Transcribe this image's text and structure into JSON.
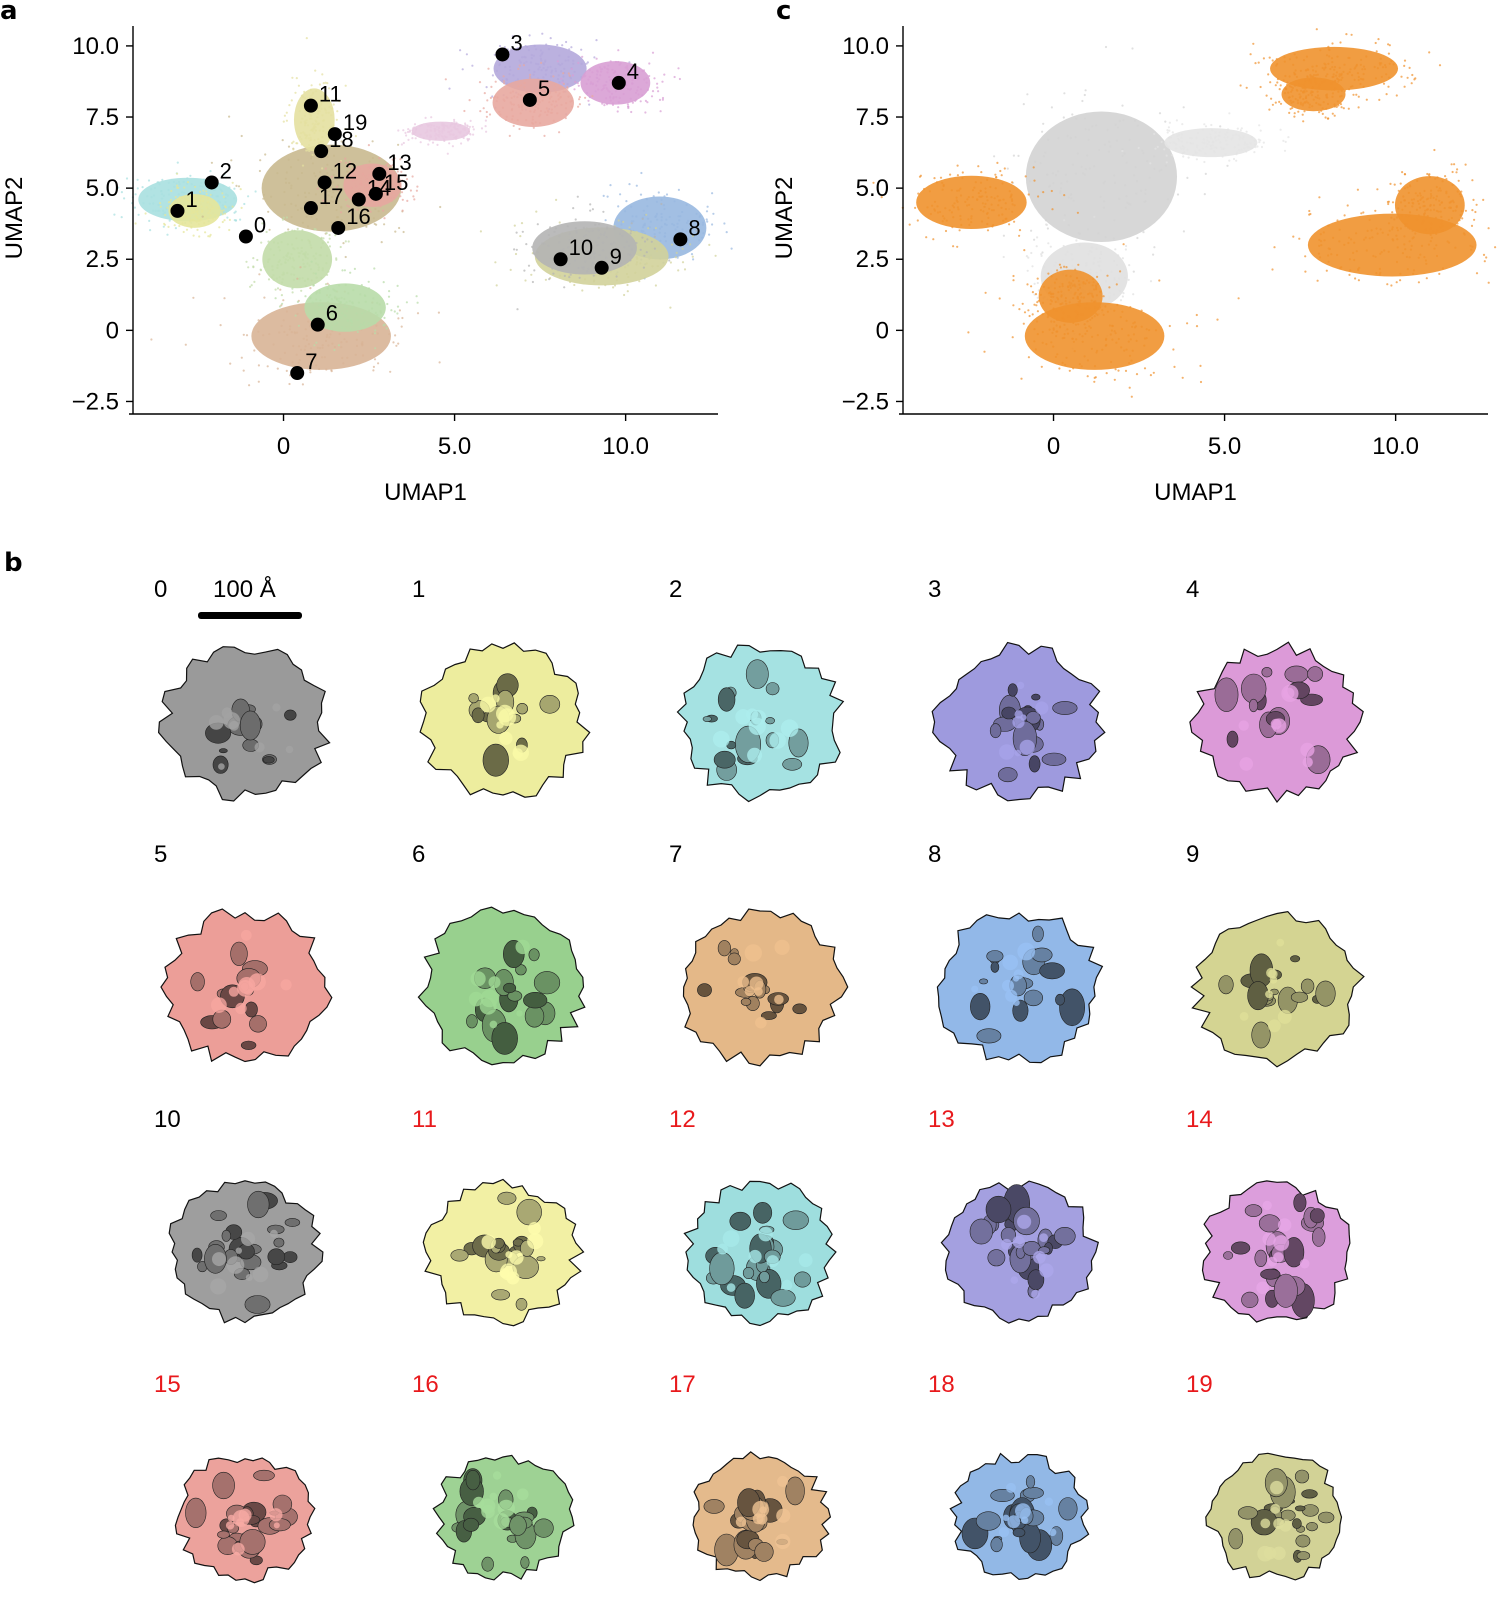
{
  "panels": {
    "a": "a",
    "b": "b",
    "c": "c"
  },
  "chart_data": [
    {
      "type": "scatter",
      "panel": "a",
      "xlabel": "UMAP1",
      "ylabel": "UMAP2",
      "xlim": [
        -4.4,
        12.7
      ],
      "ylim": [
        -2.8,
        10.7
      ],
      "xticks": [
        0,
        5.0,
        10.0
      ],
      "xtick_labels": [
        "0",
        "5.0",
        "10.0"
      ],
      "yticks": [
        -2.5,
        0,
        2.5,
        5.0,
        7.5,
        10.0
      ],
      "ytick_labels": [
        "−2.5",
        "0",
        "2.5",
        "5.0",
        "7.5",
        "10.0"
      ],
      "grid": false,
      "density_regions": [
        {
          "cx": -2.8,
          "cy": 4.6,
          "rx": 1.7,
          "ry": 0.9,
          "color": "#a8e0e0"
        },
        {
          "cx": -2.6,
          "cy": 4.2,
          "rx": 0.9,
          "ry": 0.7,
          "color": "#e6e69a"
        },
        {
          "cx": 1.4,
          "cy": 5.0,
          "rx": 2.4,
          "ry": 1.8,
          "color": "#c9b98f"
        },
        {
          "cx": 0.9,
          "cy": 7.4,
          "rx": 0.7,
          "ry": 1.3,
          "color": "#e4e0a0"
        },
        {
          "cx": 2.6,
          "cy": 5.1,
          "rx": 1.0,
          "ry": 0.9,
          "color": "#e7a7a0"
        },
        {
          "cx": 0.4,
          "cy": 2.5,
          "rx": 1.2,
          "ry": 1.2,
          "color": "#c2dca8"
        },
        {
          "cx": 1.1,
          "cy": -0.2,
          "rx": 2.4,
          "ry": 1.4,
          "color": "#d8b496"
        },
        {
          "cx": 1.8,
          "cy": 0.8,
          "rx": 1.4,
          "ry": 1.0,
          "color": "#b8dca8"
        },
        {
          "cx": 7.5,
          "cy": 9.2,
          "rx": 1.6,
          "ry": 1.0,
          "color": "#b4a8dc"
        },
        {
          "cx": 9.7,
          "cy": 8.7,
          "rx": 1.2,
          "ry": 0.9,
          "color": "#d89ed4"
        },
        {
          "cx": 7.3,
          "cy": 8.0,
          "rx": 1.4,
          "ry": 1.0,
          "color": "#e8a8a0"
        },
        {
          "cx": 11.0,
          "cy": 3.6,
          "rx": 1.6,
          "ry": 1.3,
          "color": "#98b8e0"
        },
        {
          "cx": 9.3,
          "cy": 2.6,
          "rx": 2.3,
          "ry": 1.2,
          "color": "#d2d29a"
        },
        {
          "cx": 8.8,
          "cy": 2.9,
          "rx": 1.8,
          "ry": 1.1,
          "color": "#b4b4b4"
        },
        {
          "cx": 4.6,
          "cy": 7.0,
          "rx": 1.0,
          "ry": 0.4,
          "color": "#e8c8e0"
        }
      ],
      "cluster_centers": [
        {
          "label": "0",
          "x": -1.1,
          "y": 3.3
        },
        {
          "label": "1",
          "x": -3.1,
          "y": 4.2
        },
        {
          "label": "2",
          "x": -2.1,
          "y": 5.2
        },
        {
          "label": "3",
          "x": 6.4,
          "y": 9.7
        },
        {
          "label": "4",
          "x": 9.8,
          "y": 8.7
        },
        {
          "label": "5",
          "x": 7.2,
          "y": 8.1
        },
        {
          "label": "6",
          "x": 1.0,
          "y": 0.2
        },
        {
          "label": "7",
          "x": 0.4,
          "y": -1.5
        },
        {
          "label": "8",
          "x": 11.6,
          "y": 3.2
        },
        {
          "label": "9",
          "x": 9.3,
          "y": 2.2
        },
        {
          "label": "10",
          "x": 8.1,
          "y": 2.5
        },
        {
          "label": "11",
          "x": 0.8,
          "y": 7.9
        },
        {
          "label": "12",
          "x": 1.2,
          "y": 5.2
        },
        {
          "label": "13",
          "x": 2.8,
          "y": 5.5
        },
        {
          "label": "14",
          "x": 2.2,
          "y": 4.6
        },
        {
          "label": "15",
          "x": 2.7,
          "y": 4.8
        },
        {
          "label": "16",
          "x": 1.6,
          "y": 3.6
        },
        {
          "label": "17",
          "x": 0.8,
          "y": 4.3
        },
        {
          "label": "18",
          "x": 1.1,
          "y": 6.3
        },
        {
          "label": "19",
          "x": 1.5,
          "y": 6.9
        }
      ]
    },
    {
      "type": "scatter",
      "panel": "c",
      "xlabel": "UMAP1",
      "ylabel": "UMAP2",
      "xlim": [
        -4.4,
        12.7
      ],
      "ylim": [
        -2.8,
        10.7
      ],
      "xticks": [
        0,
        5.0,
        10.0
      ],
      "xtick_labels": [
        "0",
        "5.0",
        "10.0"
      ],
      "yticks": [
        -2.5,
        0,
        2.5,
        5.0,
        7.5,
        10.0
      ],
      "ytick_labels": [
        "−2.5",
        "0",
        "2.5",
        "5.0",
        "7.5",
        "10.0"
      ],
      "grid": false,
      "colors": {
        "highlight": "#f0922e",
        "background": "#d3d3d3"
      },
      "density_regions": [
        {
          "cx": 1.4,
          "cy": 5.4,
          "rx": 2.6,
          "ry": 2.7,
          "color": "#d3d3d3"
        },
        {
          "cx": 4.6,
          "cy": 6.6,
          "rx": 1.6,
          "ry": 0.6,
          "color": "#e4e4e4"
        },
        {
          "cx": 0.9,
          "cy": 1.9,
          "rx": 1.5,
          "ry": 1.4,
          "color": "#e0e0e0"
        },
        {
          "cx": -2.4,
          "cy": 4.5,
          "rx": 1.9,
          "ry": 1.1,
          "color": "#f0922e"
        },
        {
          "cx": 1.2,
          "cy": -0.2,
          "rx": 2.4,
          "ry": 1.4,
          "color": "#f0922e"
        },
        {
          "cx": 0.5,
          "cy": 1.2,
          "rx": 1.1,
          "ry": 1.1,
          "color": "#f0922e"
        },
        {
          "cx": 8.2,
          "cy": 9.2,
          "rx": 2.2,
          "ry": 0.9,
          "color": "#f0922e"
        },
        {
          "cx": 7.6,
          "cy": 8.3,
          "rx": 1.1,
          "ry": 0.7,
          "color": "#f0922e"
        },
        {
          "cx": 9.9,
          "cy": 3.0,
          "rx": 2.9,
          "ry": 1.3,
          "color": "#f0922e"
        },
        {
          "cx": 11.0,
          "cy": 4.4,
          "rx": 1.2,
          "ry": 1.2,
          "color": "#f0922e"
        }
      ]
    }
  ],
  "maps": [
    {
      "label": "0",
      "color": "#9a9a9a",
      "label_color": "#000000"
    },
    {
      "label": "1",
      "color": "#eded9e",
      "label_color": "#000000"
    },
    {
      "label": "2",
      "color": "#a5e2e2",
      "label_color": "#000000"
    },
    {
      "label": "3",
      "color": "#9e9ade",
      "label_color": "#000000"
    },
    {
      "label": "4",
      "color": "#dc9ad8",
      "label_color": "#000000"
    },
    {
      "label": "5",
      "color": "#ec9e98",
      "label_color": "#000000"
    },
    {
      "label": "6",
      "color": "#98d08e",
      "label_color": "#000000"
    },
    {
      "label": "7",
      "color": "#e4b888",
      "label_color": "#000000"
    },
    {
      "label": "8",
      "color": "#92b8e8",
      "label_color": "#000000"
    },
    {
      "label": "9",
      "color": "#d4d492",
      "label_color": "#000000"
    },
    {
      "label": "10",
      "color": "#9e9e9e",
      "label_color": "#000000"
    },
    {
      "label": "11",
      "color": "#f2f0a4",
      "label_color": "#e8191c"
    },
    {
      "label": "12",
      "color": "#9edede",
      "label_color": "#e8191c"
    },
    {
      "label": "13",
      "color": "#a4a0e0",
      "label_color": "#e8191c"
    },
    {
      "label": "14",
      "color": "#dc9edc",
      "label_color": "#e8191c"
    },
    {
      "label": "15",
      "color": "#eca29c",
      "label_color": "#e8191c"
    },
    {
      "label": "16",
      "color": "#9ed294",
      "label_color": "#e8191c"
    },
    {
      "label": "17",
      "color": "#e4ba8c",
      "label_color": "#e8191c"
    },
    {
      "label": "18",
      "color": "#92b8e6",
      "label_color": "#e8191c"
    },
    {
      "label": "19",
      "color": "#d2d296",
      "label_color": "#e8191c"
    }
  ],
  "scale_bar": {
    "label": "100 Å"
  }
}
